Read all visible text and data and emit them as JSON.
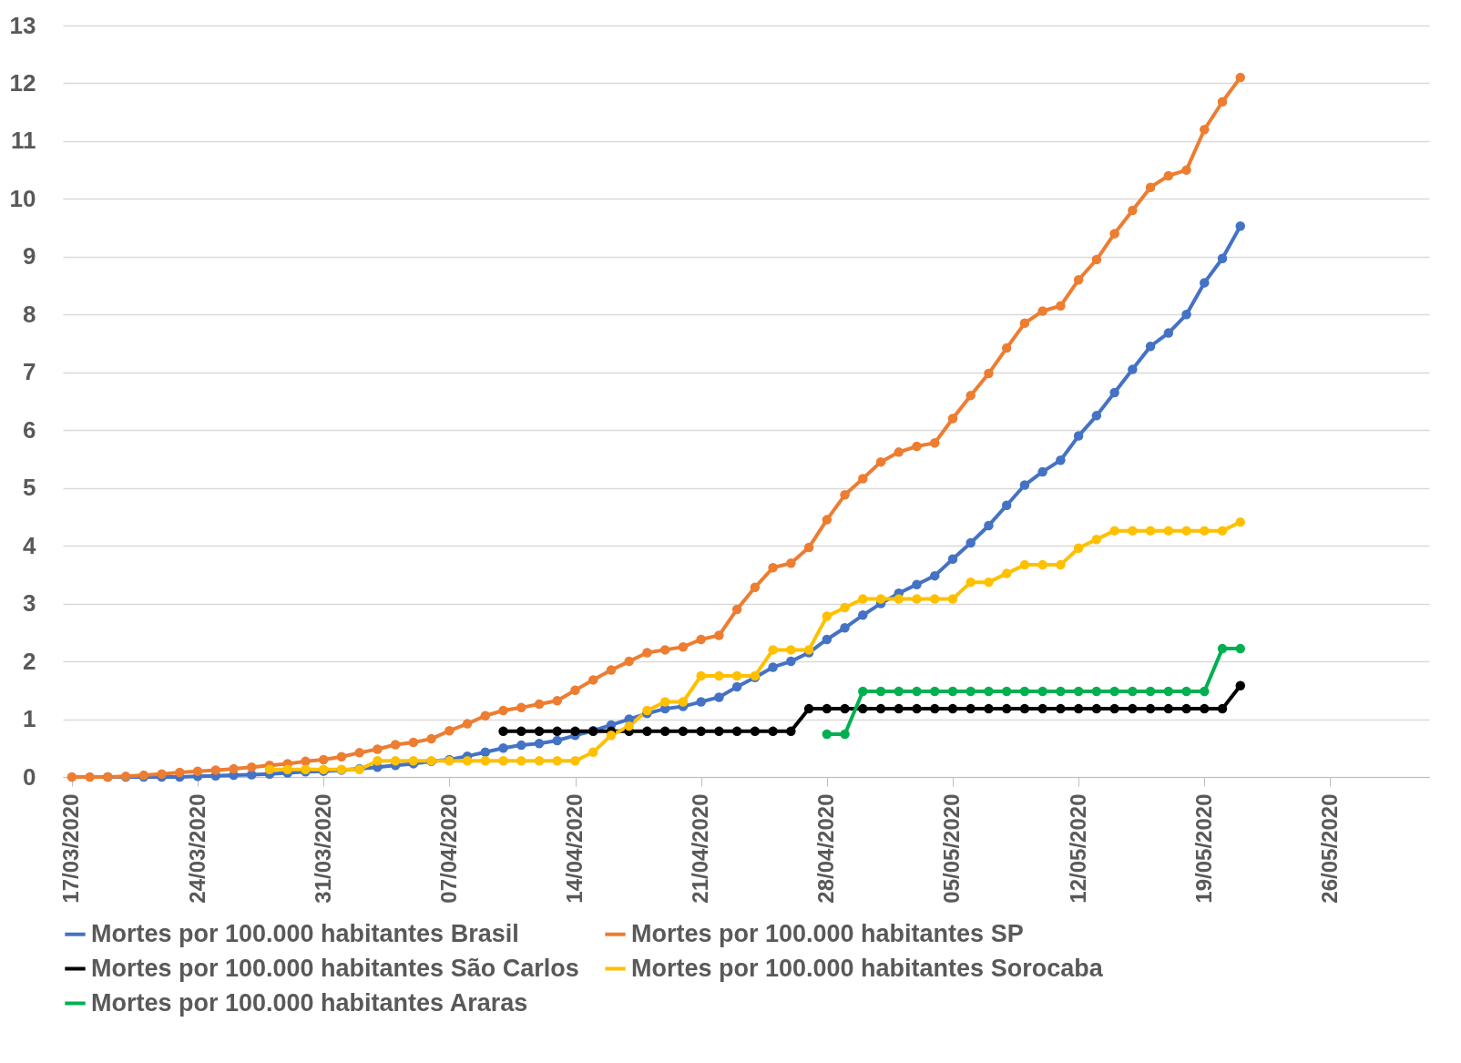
{
  "chart_data": {
    "type": "line",
    "x": [
      "2020-03-17",
      "2020-03-18",
      "2020-03-19",
      "2020-03-20",
      "2020-03-21",
      "2020-03-22",
      "2020-03-23",
      "2020-03-24",
      "2020-03-25",
      "2020-03-26",
      "2020-03-27",
      "2020-03-28",
      "2020-03-29",
      "2020-03-30",
      "2020-03-31",
      "2020-04-01",
      "2020-04-02",
      "2020-04-03",
      "2020-04-04",
      "2020-04-05",
      "2020-04-06",
      "2020-04-07",
      "2020-04-08",
      "2020-04-09",
      "2020-04-10",
      "2020-04-11",
      "2020-04-12",
      "2020-04-13",
      "2020-04-14",
      "2020-04-15",
      "2020-04-16",
      "2020-04-17",
      "2020-04-18",
      "2020-04-19",
      "2020-04-20",
      "2020-04-21",
      "2020-04-22",
      "2020-04-23",
      "2020-04-24",
      "2020-04-25",
      "2020-04-26",
      "2020-04-27",
      "2020-04-28",
      "2020-04-29",
      "2020-04-30",
      "2020-05-01",
      "2020-05-02",
      "2020-05-03",
      "2020-05-04",
      "2020-05-05",
      "2020-05-06",
      "2020-05-07",
      "2020-05-08",
      "2020-05-09",
      "2020-05-10",
      "2020-05-11",
      "2020-05-12",
      "2020-05-13",
      "2020-05-14",
      "2020-05-15",
      "2020-05-16",
      "2020-05-17",
      "2020-05-18",
      "2020-05-19",
      "2020-05-20",
      "2020-05-21"
    ],
    "series": [
      {
        "name": "Mortes por 100.000 habitantes Brasil",
        "color": "#4472c4",
        "values": [
          null,
          null,
          0,
          0,
          0,
          0,
          0,
          0.01,
          0.02,
          0.03,
          0.04,
          0.05,
          0.07,
          0.09,
          0.1,
          0.12,
          0.14,
          0.17,
          0.2,
          0.23,
          0.27,
          0.3,
          0.36,
          0.43,
          0.5,
          0.55,
          0.58,
          0.63,
          0.72,
          0.8,
          0.9,
          1.0,
          1.1,
          1.18,
          1.22,
          1.3,
          1.38,
          1.56,
          1.72,
          1.9,
          2.0,
          2.15,
          2.38,
          2.58,
          2.8,
          3.0,
          3.18,
          3.33,
          3.48,
          3.77,
          4.05,
          4.35,
          4.7,
          5.05,
          5.28,
          5.48,
          5.9,
          6.25,
          6.65,
          7.05,
          7.45,
          7.68,
          8.0,
          8.55,
          8.97,
          9.53
        ]
      },
      {
        "name": "Mortes por 100.000 habitantes SP",
        "color": "#ed7d31",
        "values": [
          0,
          0,
          0,
          0.01,
          0.03,
          0.05,
          0.08,
          0.1,
          0.12,
          0.14,
          0.17,
          0.2,
          0.23,
          0.27,
          0.3,
          0.35,
          0.42,
          0.48,
          0.56,
          0.6,
          0.66,
          0.8,
          0.92,
          1.06,
          1.15,
          1.2,
          1.26,
          1.32,
          1.5,
          1.68,
          1.85,
          2.0,
          2.15,
          2.2,
          2.25,
          2.38,
          2.45,
          2.9,
          3.28,
          3.62,
          3.7,
          3.97,
          4.45,
          4.88,
          5.16,
          5.45,
          5.62,
          5.72,
          5.78,
          6.2,
          6.6,
          6.98,
          7.42,
          7.85,
          8.06,
          8.15,
          8.6,
          8.95,
          9.4,
          9.8,
          10.2,
          10.4,
          10.5,
          11.2,
          11.68,
          12.1
        ]
      },
      {
        "name": "Mortes por 100.000 habitantes São Carlos",
        "color": "#000000",
        "values": [
          null,
          null,
          null,
          null,
          null,
          null,
          null,
          null,
          null,
          null,
          null,
          null,
          null,
          null,
          null,
          null,
          null,
          null,
          null,
          null,
          null,
          null,
          null,
          null,
          0.79,
          0.79,
          0.79,
          0.79,
          0.79,
          0.79,
          0.79,
          0.79,
          0.79,
          0.79,
          0.79,
          0.79,
          0.79,
          0.79,
          0.79,
          0.79,
          0.79,
          1.18,
          1.18,
          1.18,
          1.18,
          1.18,
          1.18,
          1.18,
          1.18,
          1.18,
          1.18,
          1.18,
          1.18,
          1.18,
          1.18,
          1.18,
          1.18,
          1.18,
          1.18,
          1.18,
          1.18,
          1.18,
          1.18,
          1.18,
          1.18,
          1.58
        ]
      },
      {
        "name": "Mortes por 100.000 habitantes Sorocaba",
        "color": "#ffc000",
        "values": [
          null,
          null,
          null,
          null,
          null,
          null,
          null,
          null,
          null,
          null,
          null,
          0.13,
          0.13,
          0.13,
          0.13,
          0.13,
          0.13,
          0.28,
          0.28,
          0.28,
          0.28,
          0.28,
          0.28,
          0.28,
          0.28,
          0.28,
          0.28,
          0.28,
          0.28,
          0.43,
          0.72,
          0.88,
          1.15,
          1.3,
          1.3,
          1.75,
          1.75,
          1.75,
          1.75,
          2.2,
          2.2,
          2.2,
          2.78,
          2.93,
          3.08,
          3.08,
          3.08,
          3.08,
          3.08,
          3.08,
          3.37,
          3.37,
          3.52,
          3.67,
          3.67,
          3.67,
          3.96,
          4.11,
          4.26,
          4.26,
          4.26,
          4.26,
          4.26,
          4.26,
          4.26,
          4.41
        ]
      },
      {
        "name": "Mortes por 100.000 habitantes Araras",
        "color": "#00b050",
        "values": [
          null,
          null,
          null,
          null,
          null,
          null,
          null,
          null,
          null,
          null,
          null,
          null,
          null,
          null,
          null,
          null,
          null,
          null,
          null,
          null,
          null,
          null,
          null,
          null,
          null,
          null,
          null,
          null,
          null,
          null,
          null,
          null,
          null,
          null,
          null,
          null,
          null,
          null,
          null,
          null,
          null,
          null,
          0.74,
          0.74,
          1.48,
          1.48,
          1.48,
          1.48,
          1.48,
          1.48,
          1.48,
          1.48,
          1.48,
          1.48,
          1.48,
          1.48,
          1.48,
          1.48,
          1.48,
          1.48,
          1.48,
          1.48,
          1.48,
          1.48,
          2.22,
          2.22
        ]
      }
    ],
    "xlim": [
      "2020-03-16T12:00",
      "2020-05-31T12:00"
    ],
    "xticks": [
      {
        "value": "2020-03-17",
        "label": "17/03/2020"
      },
      {
        "value": "2020-03-24",
        "label": "24/03/2020"
      },
      {
        "value": "2020-03-31",
        "label": "31/03/2020"
      },
      {
        "value": "2020-04-07",
        "label": "07/04/2020"
      },
      {
        "value": "2020-04-14",
        "label": "14/04/2020"
      },
      {
        "value": "2020-04-21",
        "label": "21/04/2020"
      },
      {
        "value": "2020-04-28",
        "label": "28/04/2020"
      },
      {
        "value": "2020-05-05",
        "label": "05/05/2020"
      },
      {
        "value": "2020-05-12",
        "label": "12/05/2020"
      },
      {
        "value": "2020-05-19",
        "label": "19/05/2020"
      },
      {
        "value": "2020-05-26",
        "label": "26/05/2020"
      }
    ],
    "ylim": [
      0,
      13
    ],
    "yticks": [
      0,
      1,
      2,
      3,
      4,
      5,
      6,
      7,
      8,
      9,
      10,
      11,
      12,
      13
    ],
    "grid": "y",
    "legend": "bottom",
    "marker": "circle",
    "line_style": "solid"
  }
}
